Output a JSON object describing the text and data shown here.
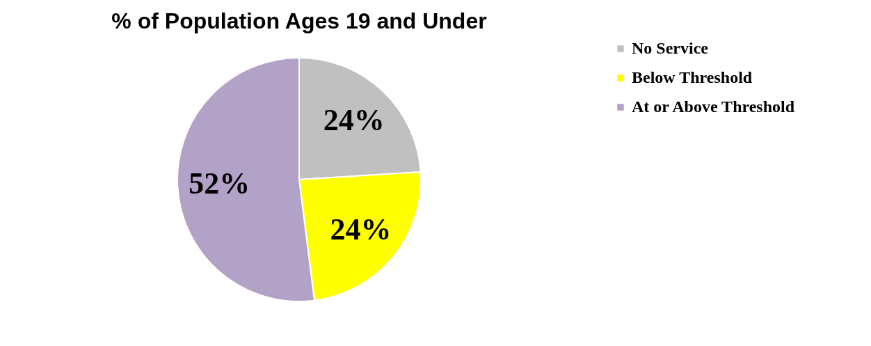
{
  "chart_data": {
    "type": "pie",
    "title": "% of Population Ages 19 and Under",
    "categories": [
      "No Service",
      "Below Threshold",
      "At or Above Threshold"
    ],
    "values": [
      24,
      24,
      52
    ],
    "colors": [
      "#c0c0c0",
      "#ffff00",
      "#b3a2c7"
    ],
    "value_labels": [
      "24%",
      "24%",
      "52%"
    ],
    "legend": "right"
  }
}
